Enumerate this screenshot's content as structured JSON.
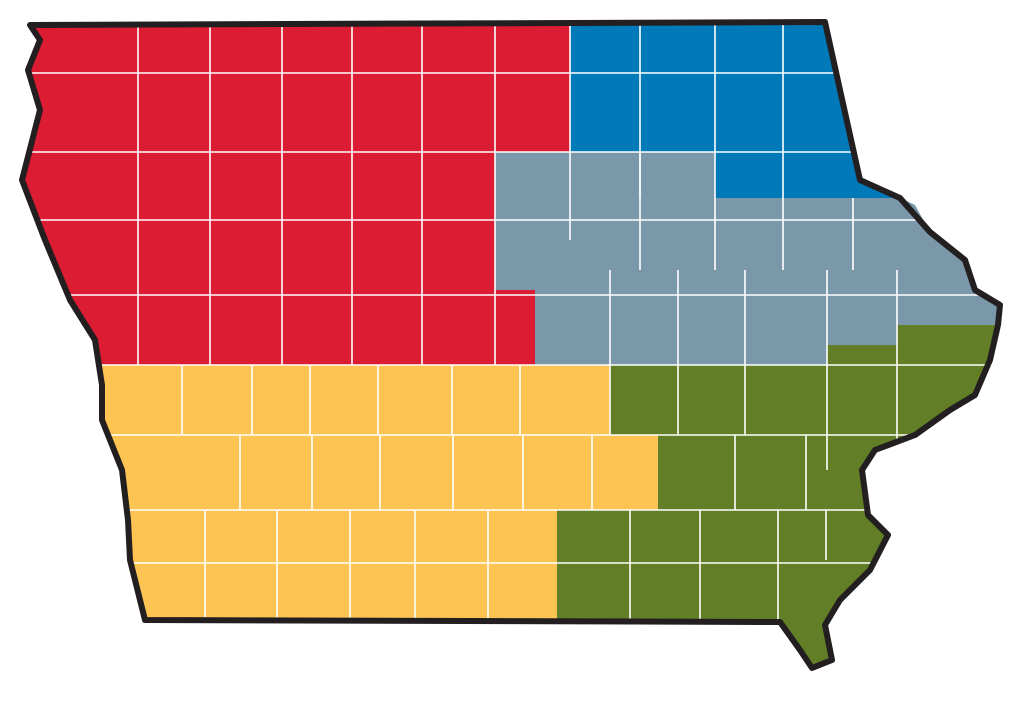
{
  "regions": [
    {
      "color": "#dc1c32"
    },
    {
      "color": "#0079b8"
    },
    {
      "color": "#7b98ab"
    },
    {
      "color": "#fdc453"
    },
    {
      "color": "#627e27"
    }
  ]
}
